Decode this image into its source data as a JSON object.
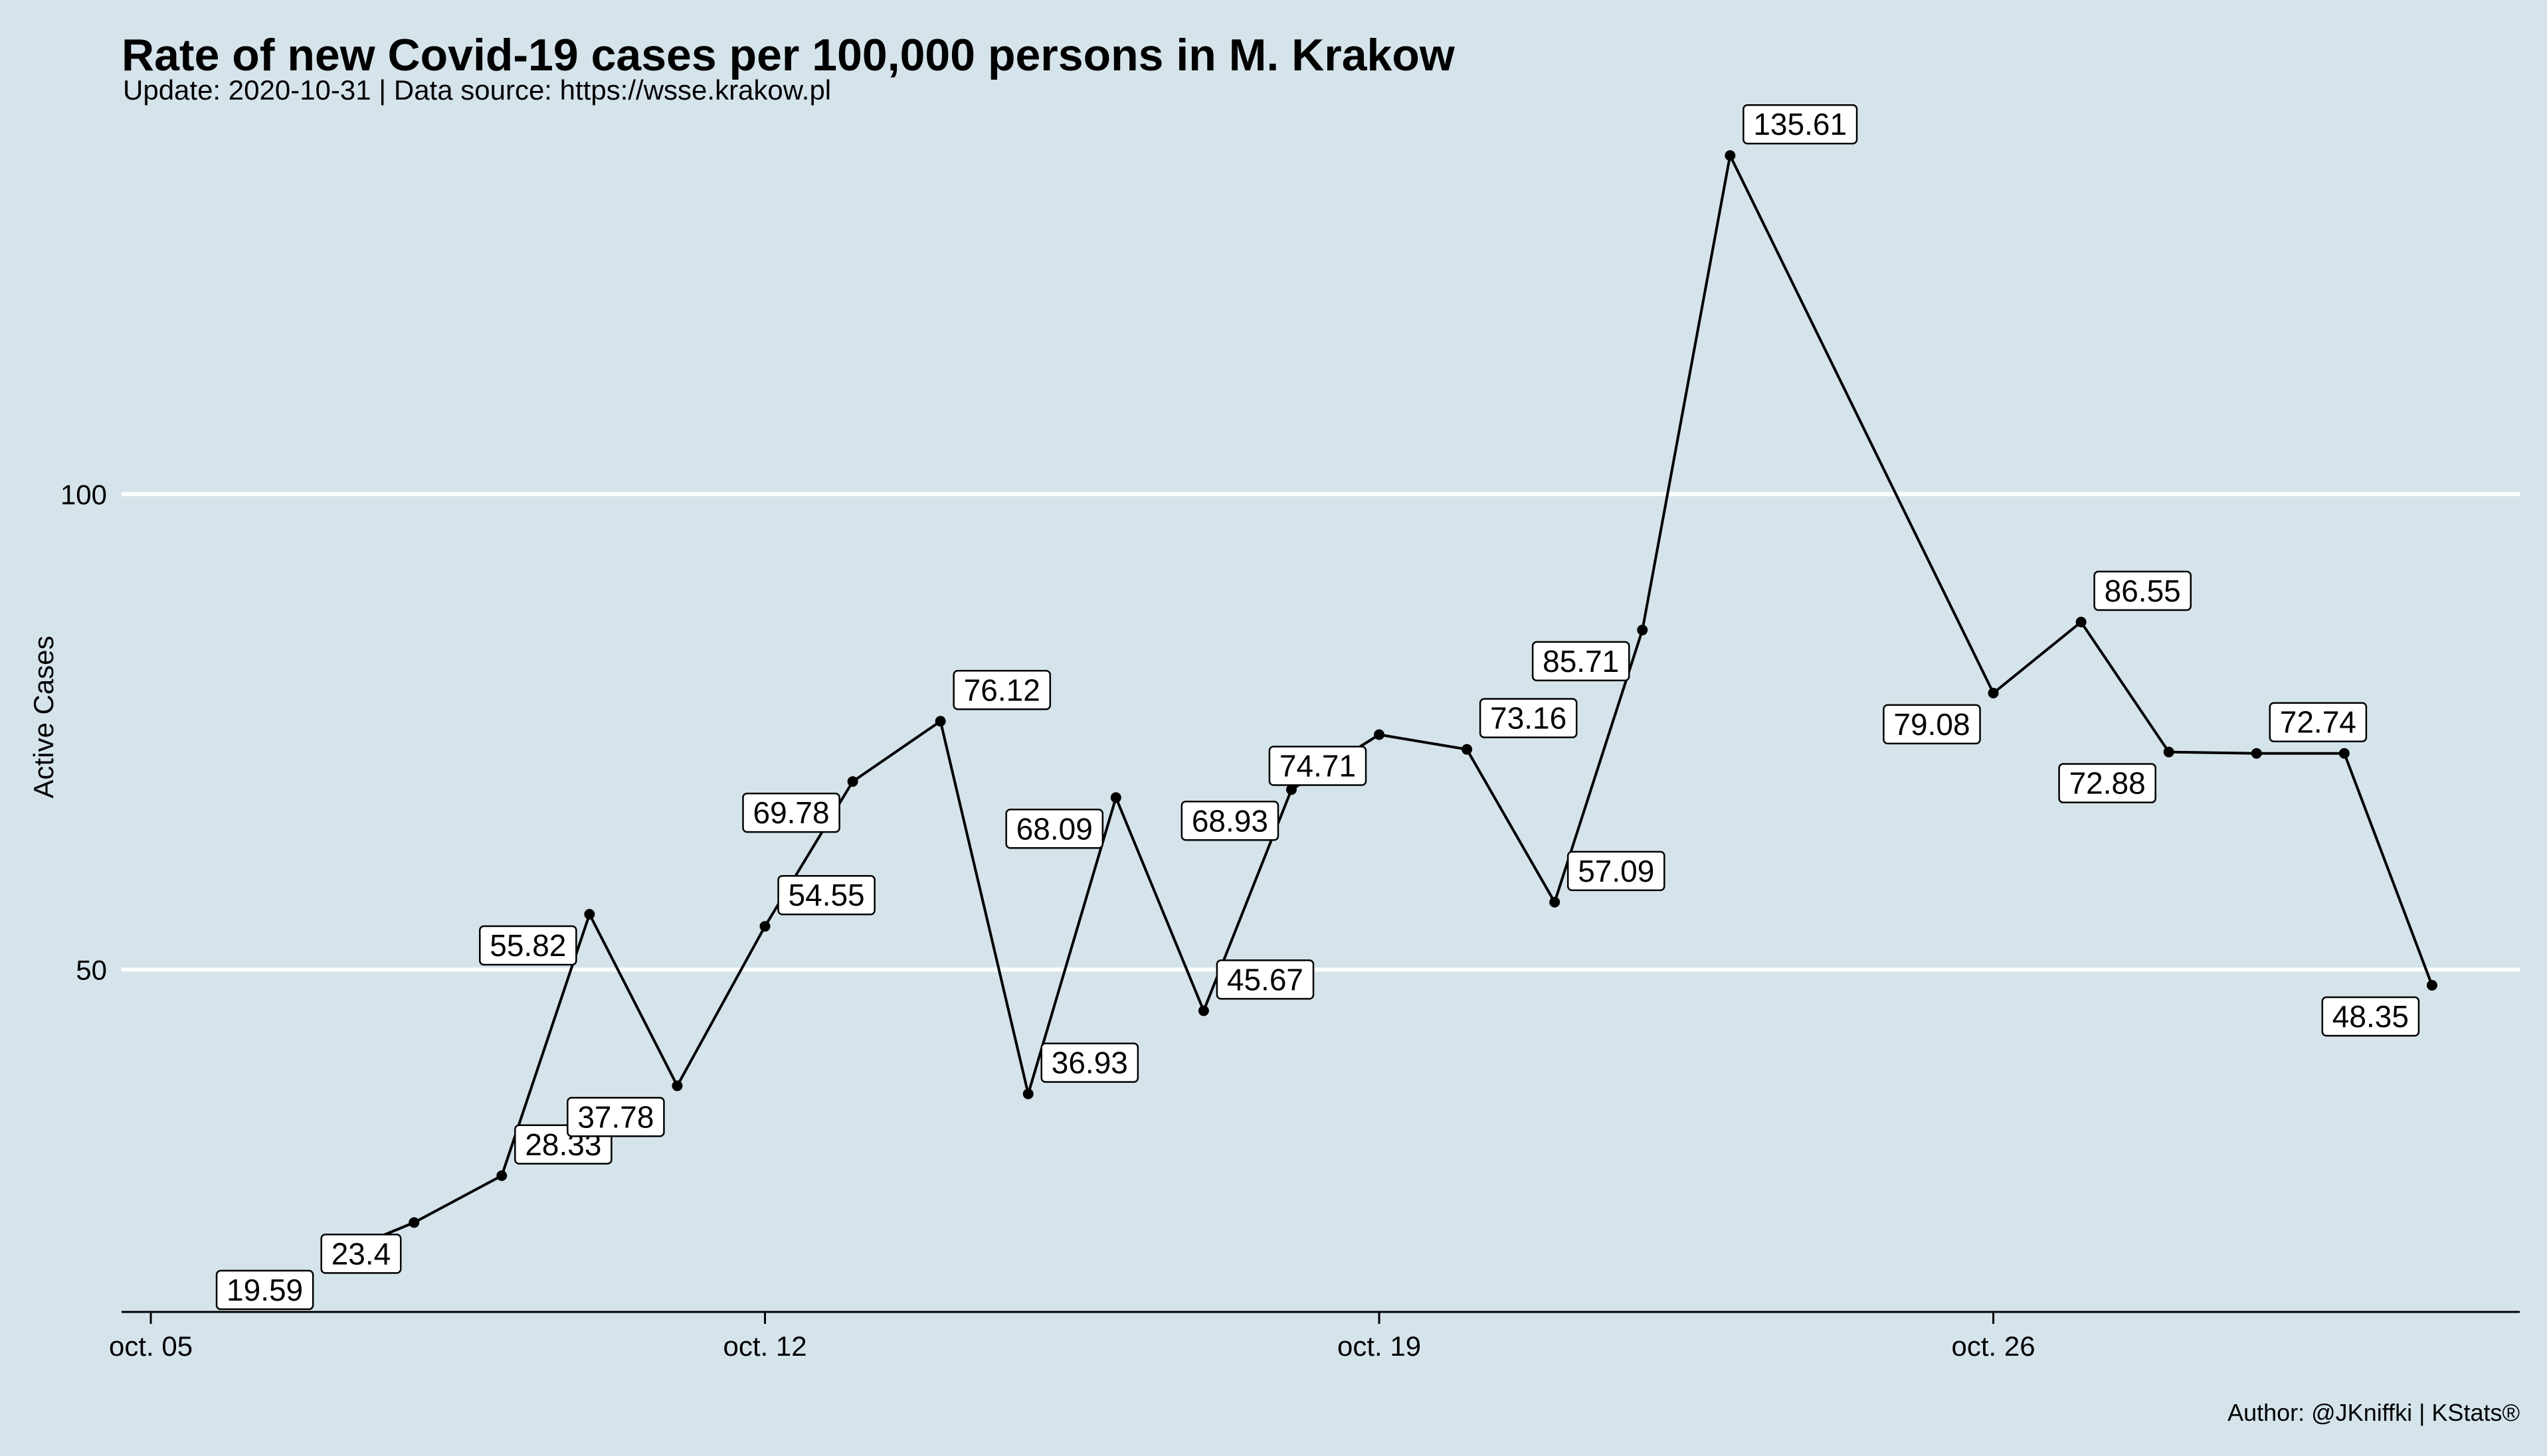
{
  "chart_data": {
    "type": "line",
    "title": "Rate of new Covid-19 cases per 100,000 persons in M. Krakow",
    "subtitle": "Update: 2020-10-31 | Data source: https://wsse.krakow.pl",
    "caption": "Author: @JKniffki | KStats®",
    "xlabel": "",
    "ylabel": "Active Cases",
    "x": [
      "2020-10-07",
      "2020-10-08",
      "2020-10-09",
      "2020-10-10",
      "2020-10-11",
      "2020-10-12",
      "2020-10-13",
      "2020-10-14",
      "2020-10-15",
      "2020-10-16",
      "2020-10-17",
      "2020-10-18",
      "2020-10-19",
      "2020-10-20",
      "2020-10-21",
      "2020-10-22",
      "2020-10-23",
      "2020-10-26",
      "2020-10-27",
      "2020-10-28",
      "2020-10-29",
      "2020-10-30",
      "2020-10-31"
    ],
    "values": [
      19.59,
      23.4,
      28.33,
      55.82,
      37.78,
      54.55,
      69.78,
      76.12,
      36.93,
      68.09,
      45.67,
      68.93,
      74.71,
      73.16,
      57.09,
      85.71,
      135.61,
      79.08,
      86.55,
      72.88,
      72.74,
      72.74,
      48.35
    ],
    "value_labels": [
      "19.59",
      "23.4",
      "28.33",
      "55.82",
      "37.78",
      "54.55",
      "69.78",
      "76.12",
      "36.93",
      "68.09",
      "45.67",
      "68.93",
      "74.71",
      "73.16",
      "57.09",
      "85.71",
      "135.61",
      "79.08",
      "86.55",
      "72.88",
      "72.74",
      null,
      "48.35"
    ],
    "label_sides": [
      "left",
      "left",
      "right",
      "left",
      "left",
      "right",
      "left",
      "right",
      "right",
      "left",
      "right",
      "left",
      "left",
      "right",
      "right",
      "left",
      "right",
      "left",
      "right",
      "left",
      "right",
      "right",
      "left"
    ],
    "x_ticks": [
      {
        "date": "2020-10-05",
        "label": "oct. 05"
      },
      {
        "date": "2020-10-12",
        "label": "oct. 12"
      },
      {
        "date": "2020-10-19",
        "label": "oct. 19"
      },
      {
        "date": "2020-10-26",
        "label": "oct. 26"
      }
    ],
    "y_ticks": [
      50,
      100
    ],
    "xlim": [
      "2020-10-04T16:00",
      "2020-11-01T00:00"
    ],
    "ylim": [
      14,
      138
    ],
    "grid": "horizontal major",
    "legend": "none",
    "colors": {
      "background": "#d5e4eb",
      "line": "#000000",
      "grid": "#ffffff",
      "label_fill": "#ffffff"
    }
  }
}
